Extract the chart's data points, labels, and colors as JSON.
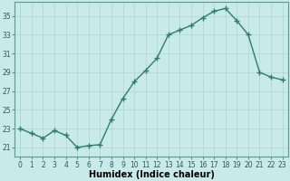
{
  "x": [
    0,
    1,
    2,
    3,
    4,
    5,
    6,
    7,
    8,
    9,
    10,
    11,
    12,
    13,
    14,
    15,
    16,
    17,
    18,
    19,
    20,
    21,
    22,
    23
  ],
  "y": [
    23.0,
    22.5,
    22.0,
    22.8,
    22.3,
    21.0,
    21.2,
    21.3,
    24.0,
    26.2,
    28.0,
    29.2,
    30.5,
    33.0,
    33.5,
    34.0,
    34.8,
    35.5,
    35.8,
    34.5,
    33.0,
    29.0,
    28.5,
    28.2
  ],
  "line_color": "#2d7d6e",
  "marker": "+",
  "marker_size": 4,
  "line_width": 1.0,
  "bg_color": "#c8eae8",
  "grid_color": "#b0d4d0",
  "xlabel": "Humidex (Indice chaleur)",
  "yticks": [
    21,
    23,
    25,
    27,
    29,
    31,
    33,
    35
  ],
  "xticks": [
    0,
    1,
    2,
    3,
    4,
    5,
    6,
    7,
    8,
    9,
    10,
    11,
    12,
    13,
    14,
    15,
    16,
    17,
    18,
    19,
    20,
    21,
    22,
    23
  ],
  "ylim": [
    20.0,
    36.5
  ],
  "xlim": [
    -0.5,
    23.5
  ],
  "tick_fontsize": 5.5,
  "xlabel_fontsize": 7.0
}
